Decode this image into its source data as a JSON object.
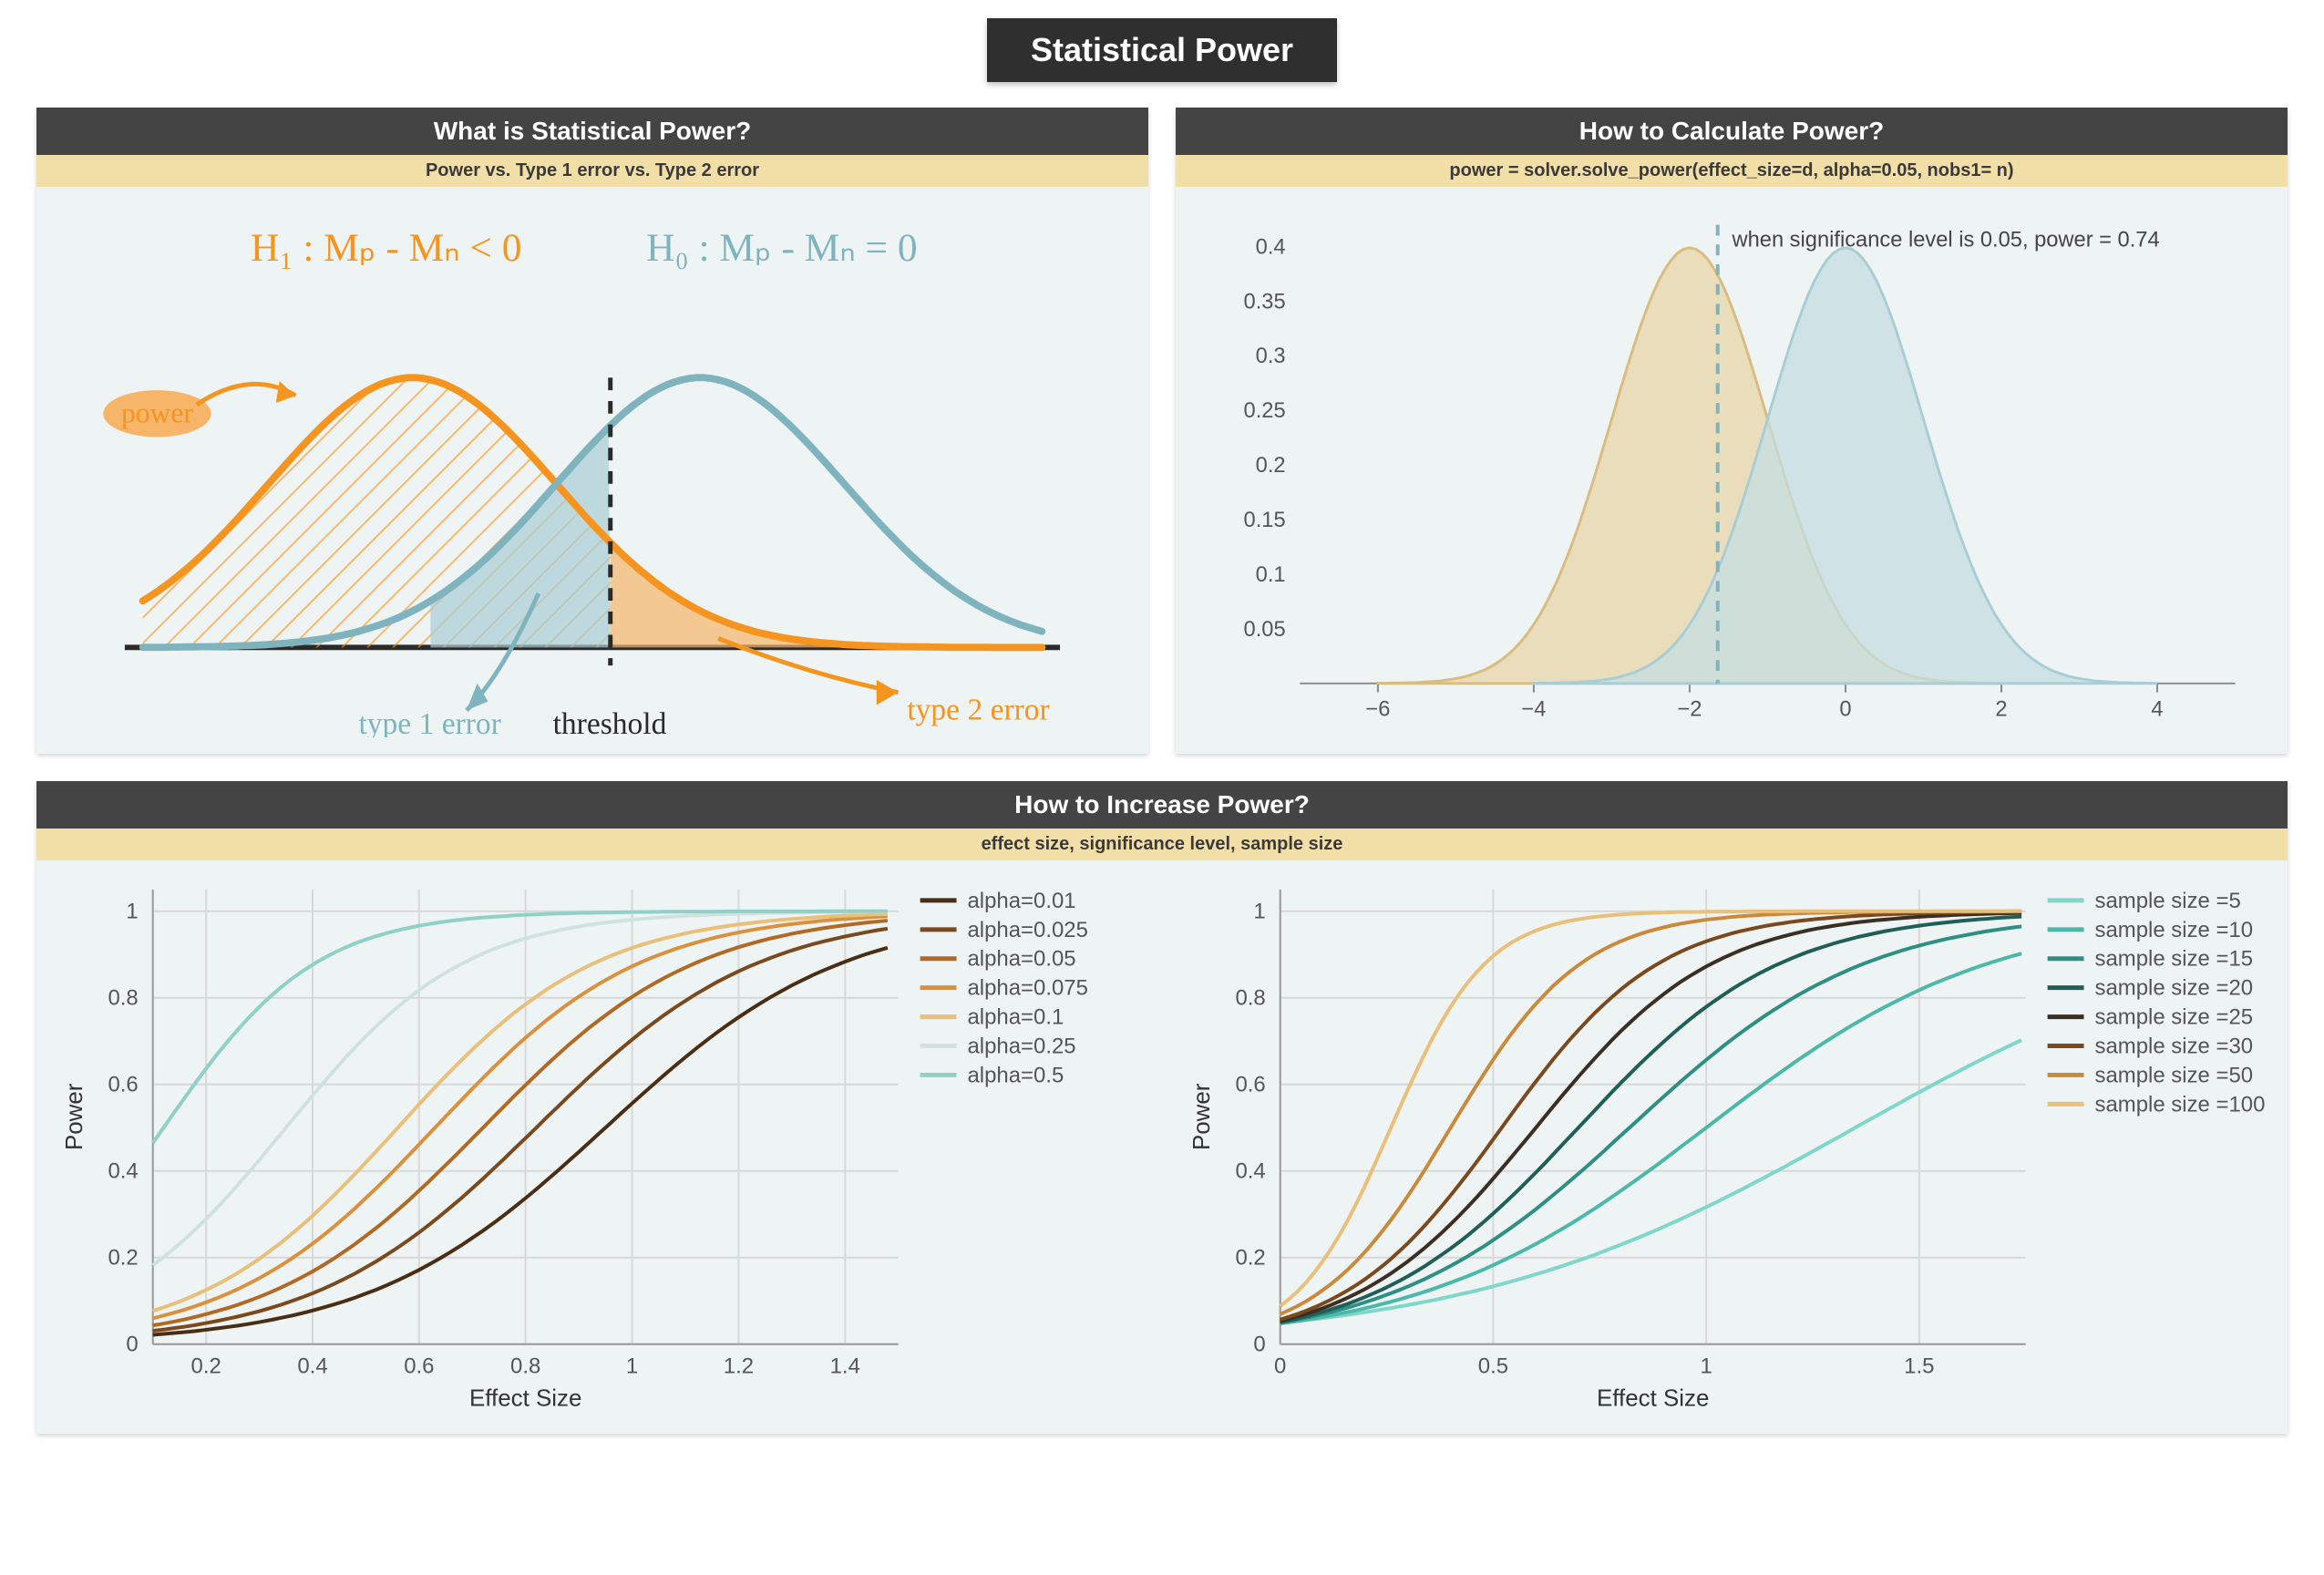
{
  "title": "Statistical Power",
  "colors": {
    "page_bg": "#ffffff",
    "panel_bg": "#eef3f3",
    "header_bg": "#444444",
    "header_fg": "#ffffff",
    "subheader_bg": "#f2dfa8",
    "subheader_fg": "#3a3a3a",
    "title_bg": "#2f2f2f",
    "orange": "#f5941f",
    "orange_fill": "#f7b56a",
    "blue": "#7fb4bf",
    "blue_fill": "#a9cdd4",
    "tan": "#d9bc7f",
    "axis": "#555555",
    "grid": "#d8d8d8"
  },
  "panel1": {
    "title": "What is Statistical Power?",
    "subtitle": "Power vs. Type 1 error vs. Type 2 error",
    "h1_label": "H₁ : Mₚ - Mₙ < 0",
    "h0_label": "H₀ : Mₚ - Mₙ = 0",
    "power_label": "power",
    "type1_label": "type 1 error",
    "type2_label": "type 2 error",
    "threshold_label": "threshold",
    "curve_h1": {
      "mu": 200,
      "sigma": 80,
      "peak": 150,
      "color": "#f5941f"
    },
    "curve_h0": {
      "mu": 360,
      "sigma": 80,
      "peak": 150,
      "color": "#7fb4bf"
    },
    "threshold_x": 310,
    "baseline_y": 250,
    "hatch_color": "#f5941f"
  },
  "panel2": {
    "title": "How to Calculate Power?",
    "subtitle": "power = solver.solve_power(effect_size=d, alpha=0.05, nobs1= n)",
    "annotation": "when significance level is 0.05, power = 0.74",
    "x_ticks": [
      -6,
      -4,
      -2,
      0,
      2,
      4
    ],
    "x_range": [
      -7,
      5
    ],
    "y_ticks": [
      0.05,
      0.1,
      0.15,
      0.2,
      0.25,
      0.3,
      0.35,
      0.4
    ],
    "y_range": [
      0,
      0.42
    ],
    "dist_a": {
      "mu": -2,
      "sigma": 1,
      "color": "#d9bc7f",
      "fill": "#e8d6a8",
      "opacity": 0.75
    },
    "dist_b": {
      "mu": 0,
      "sigma": 1,
      "color": "#a9cdd4",
      "fill": "#c4dde2",
      "opacity": 0.75
    },
    "threshold_x": -1.64,
    "threshold_color": "#7fb4bf"
  },
  "panel3": {
    "title": "How to Increase Power?",
    "subtitle": "effect size, significance level, sample size",
    "shared": {
      "x_label": "Effect Size",
      "y_label": "Power",
      "y_ticks": [
        0,
        0.2,
        0.4,
        0.6,
        0.8,
        1
      ],
      "y_range": [
        0,
        1.05
      ]
    },
    "left": {
      "x_ticks": [
        0.2,
        0.4,
        0.6,
        0.8,
        1,
        1.2,
        1.4
      ],
      "x_range": [
        0.1,
        1.5
      ],
      "legend_title": "",
      "series": [
        {
          "label": "alpha=0.01",
          "color": "#4a2e14",
          "k": 4.5,
          "mid": 0.95
        },
        {
          "label": "alpha=0.025",
          "color": "#7a4a1e",
          "k": 4.8,
          "mid": 0.82
        },
        {
          "label": "alpha=0.05",
          "color": "#b06a24",
          "k": 5.0,
          "mid": 0.72
        },
        {
          "label": "alpha=0.075",
          "color": "#d9913e",
          "k": 5.2,
          "mid": 0.63
        },
        {
          "label": "alpha=0.1",
          "color": "#e8c07a",
          "k": 5.4,
          "mid": 0.56
        },
        {
          "label": "alpha=0.25",
          "color": "#cfe2df",
          "k": 6.0,
          "mid": 0.35
        },
        {
          "label": "alpha=0.5",
          "color": "#8fd0c7",
          "k": 7.0,
          "mid": 0.12
        }
      ]
    },
    "right": {
      "x_ticks": [
        0,
        0.5,
        1,
        1.5
      ],
      "x_range": [
        0,
        1.75
      ],
      "series": [
        {
          "label": "sample size =5",
          "color": "#7fd6cb",
          "k": 2.2,
          "mid": 1.35
        },
        {
          "label": "sample size =10",
          "color": "#4bb8aa",
          "k": 3.0,
          "mid": 1.0
        },
        {
          "label": "sample size =15",
          "color": "#2e8f84",
          "k": 3.6,
          "mid": 0.82
        },
        {
          "label": "sample size =20",
          "color": "#1f5f58",
          "k": 4.2,
          "mid": 0.7
        },
        {
          "label": "sample size =25",
          "color": "#3b2f23",
          "k": 4.8,
          "mid": 0.6
        },
        {
          "label": "sample size =30",
          "color": "#7a4a1e",
          "k": 5.4,
          "mid": 0.52
        },
        {
          "label": "sample size =50",
          "color": "#c98a3a",
          "k": 6.5,
          "mid": 0.4
        },
        {
          "label": "sample size =100",
          "color": "#e8c07a",
          "k": 9.0,
          "mid": 0.26
        }
      ]
    }
  }
}
